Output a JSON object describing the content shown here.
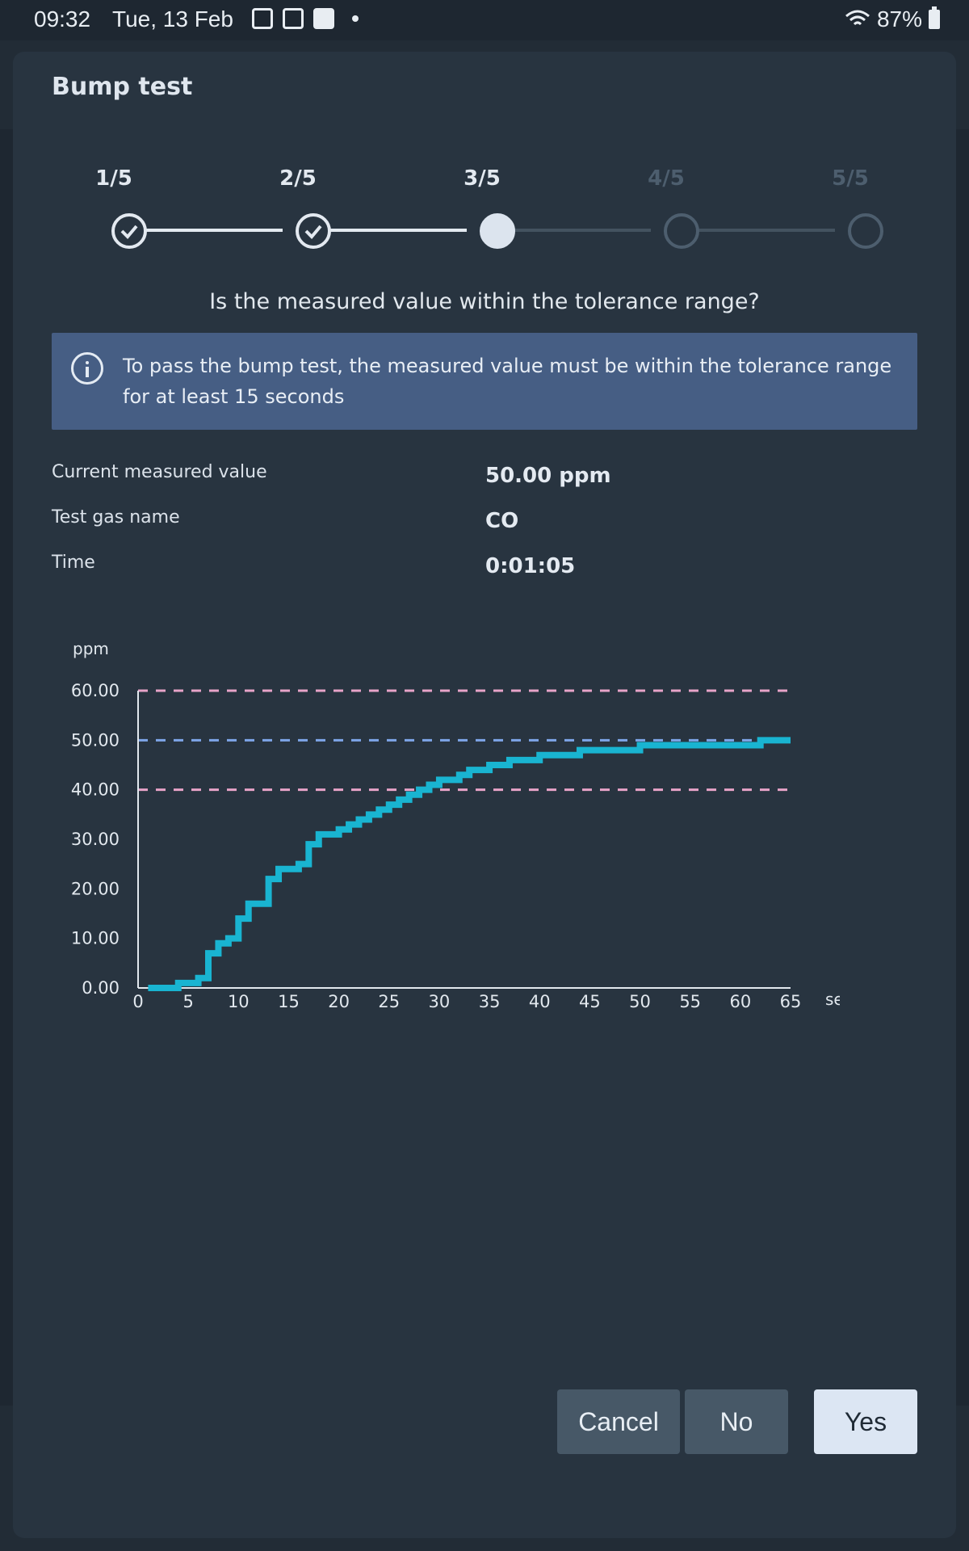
{
  "status_bar": {
    "time": "09:32",
    "date": "Tue, 13 Feb",
    "battery": "87%",
    "icons": [
      "image-icon",
      "document-search-icon",
      "checkbox-icon",
      "dot-icon",
      "wifi-icon",
      "battery-icon"
    ]
  },
  "dialog": {
    "title": "Bump test",
    "steps": [
      {
        "label": "1/5",
        "state": "done"
      },
      {
        "label": "2/5",
        "state": "done"
      },
      {
        "label": "3/5",
        "state": "current"
      },
      {
        "label": "4/5",
        "state": "pending"
      },
      {
        "label": "5/5",
        "state": "pending"
      }
    ],
    "question": "Is the measured value within the tolerance range?",
    "info": "To pass the bump test, the measured value must be within the tolerance range for at least 15 seconds",
    "fields": [
      {
        "label": "Current measured value",
        "value": "50.00 ppm"
      },
      {
        "label": "Test gas name",
        "value": "CO"
      },
      {
        "label": "Time",
        "value": "0:01:05"
      }
    ],
    "buttons": {
      "cancel": "Cancel",
      "no": "No",
      "yes": "Yes"
    }
  },
  "chart_data": {
    "type": "line",
    "step": true,
    "ylabel": "ppm",
    "xlabel": "sec",
    "xlim": [
      0,
      65
    ],
    "ylim": [
      0,
      60
    ],
    "x_ticks": [
      "0",
      "5",
      "10",
      "15",
      "20",
      "25",
      "30",
      "35",
      "40",
      "45",
      "50",
      "55",
      "60",
      "65"
    ],
    "y_ticks": [
      "0.00",
      "10.00",
      "20.00",
      "30.00",
      "40.00",
      "50.00",
      "60.00"
    ],
    "reference_lines": [
      {
        "value": 60,
        "color": "#e7a3c8"
      },
      {
        "value": 50,
        "color": "#7ea5e8"
      },
      {
        "value": 40,
        "color": "#e7a3c8"
      }
    ],
    "line_color": "#19b4d1",
    "x": [
      1,
      2,
      3,
      4,
      5,
      6,
      7,
      8,
      9,
      10,
      11,
      12,
      13,
      14,
      15,
      16,
      17,
      18,
      19,
      20,
      21,
      22,
      23,
      24,
      25,
      26,
      27,
      28,
      29,
      30,
      31,
      32,
      33,
      34,
      35,
      36,
      37,
      38,
      39,
      40,
      41,
      42,
      43,
      44,
      45,
      46,
      47,
      48,
      49,
      50,
      51,
      52,
      53,
      54,
      55,
      56,
      57,
      58,
      59,
      60,
      61,
      62,
      63,
      64,
      65
    ],
    "y": [
      0,
      0,
      0,
      1,
      1,
      2,
      7,
      9,
      10,
      14,
      17,
      17,
      22,
      24,
      24,
      25,
      29,
      31,
      31,
      32,
      33,
      34,
      35,
      36,
      37,
      38,
      39,
      40,
      41,
      42,
      42,
      43,
      44,
      44,
      45,
      45,
      46,
      46,
      46,
      47,
      47,
      47,
      47,
      48,
      48,
      48,
      48,
      48,
      48,
      49,
      49,
      49,
      49,
      49,
      49,
      49,
      49,
      49,
      49,
      49,
      49,
      50,
      50,
      50,
      50
    ]
  }
}
